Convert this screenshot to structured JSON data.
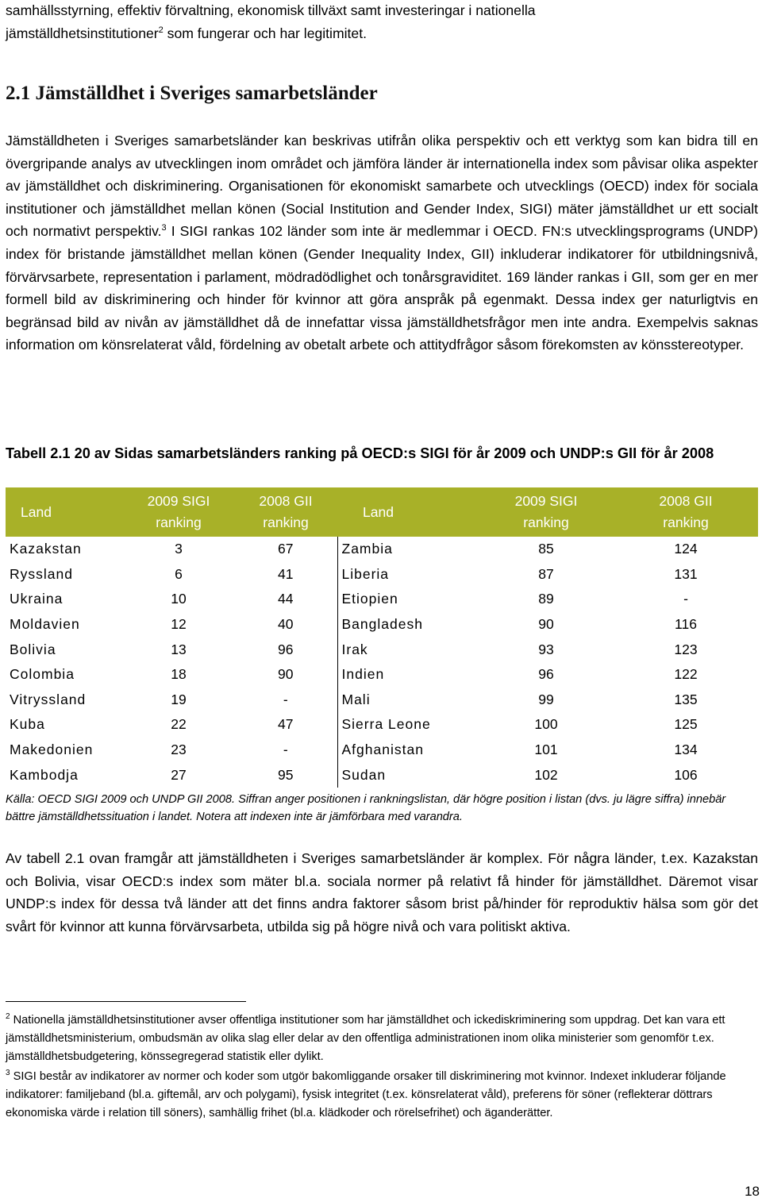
{
  "intro": {
    "p1": "samhällsstyrning, effektiv förvaltning, ekonomisk tillväxt samt investeringar i nationella",
    "p2a": "jämställdhetsinstitutioner",
    "p2sup": "2",
    "p2b": " som fungerar och har legitimitet."
  },
  "heading": "2.1 Jämställdhet i Sveriges samarbetsländer",
  "body1": {
    "a": "Jämställdheten i Sveriges samarbetsländer kan beskrivas utifrån olika perspektiv och ett verktyg som kan bidra till en övergripande analys av utvecklingen inom området och jämföra länder är internationella index som påvisar olika aspekter av jämställdhet och diskriminering. Organisationen för ekonomiskt samarbete och utvecklings (OECD) index för sociala institutioner och jämställdhet mellan könen (Social Institution and Gender Index, SIGI) mäter jämställdhet ur ett socialt och normativt perspektiv.",
    "sup": "3",
    "b": " I SIGI rankas 102 länder som inte är medlemmar i OECD. FN:s utvecklingsprograms (UNDP) index för bristande jämställdhet mellan könen (Gender Inequality Index, GII) inkluderar indikatorer för utbildningsnivå, förvärvsarbete, representation i parlament, mödradödlighet och tonårsgraviditet. 169 länder rankas i GII, som ger en mer formell bild av diskriminering och hinder för kvinnor att göra anspråk på egenmakt.  Dessa index ger naturligtvis en begränsad bild av nivån av jämställdhet då de innefattar vissa jämställdhetsfrågor men inte andra. Exempelvis saknas information om könsrelaterat våld, fördelning av obetalt arbete och attitydfrågor såsom förekomsten av könsstereotyper."
  },
  "table": {
    "caption": "Tabell 2.1  20 av Sidas samarbetsländers ranking på OECD:s SIGI för år 2009 och UNDP:s GII för år 2008",
    "header": {
      "land": "Land",
      "sigi_l1": "2009 SIGI",
      "sigi_l2": "ranking",
      "gii_l1": "2008 GII",
      "gii_l2": "ranking"
    },
    "left": [
      {
        "land": "Kazakstan",
        "sigi": "3",
        "gii": "67"
      },
      {
        "land": "Ryssland",
        "sigi": "6",
        "gii": "41"
      },
      {
        "land": "Ukraina",
        "sigi": "10",
        "gii": "44"
      },
      {
        "land": "Moldavien",
        "sigi": "12",
        "gii": "40"
      },
      {
        "land": "Bolivia",
        "sigi": "13",
        "gii": "96"
      },
      {
        "land": "Colombia",
        "sigi": "18",
        "gii": "90"
      },
      {
        "land": "Vitryssland",
        "sigi": "19",
        "gii": "-"
      },
      {
        "land": "Kuba",
        "sigi": "22",
        "gii": "47"
      },
      {
        "land": "Makedonien",
        "sigi": "23",
        "gii": "-"
      },
      {
        "land": "Kambodja",
        "sigi": "27",
        "gii": "95"
      }
    ],
    "right": [
      {
        "land": "Zambia",
        "sigi": "85",
        "gii": "124"
      },
      {
        "land": "Liberia",
        "sigi": "87",
        "gii": "131"
      },
      {
        "land": "Etiopien",
        "sigi": "89",
        "gii": "-"
      },
      {
        "land": "Bangladesh",
        "sigi": "90",
        "gii": "116"
      },
      {
        "land": "Irak",
        "sigi": "93",
        "gii": "123"
      },
      {
        "land": "Indien",
        "sigi": "96",
        "gii": "122"
      },
      {
        "land": "Mali",
        "sigi": "99",
        "gii": "135"
      },
      {
        "land": "Sierra Leone",
        "sigi": "100",
        "gii": "125"
      },
      {
        "land": "Afghanistan",
        "sigi": "101",
        "gii": "134"
      },
      {
        "land": "Sudan",
        "sigi": "102",
        "gii": "106"
      }
    ],
    "source": "Källa: OECD SIGI 2009 och UNDP GII 2008. Siffran anger positionen i rankningslistan, där högre position i listan (dvs. ju lägre siffra) innebär bättre jämställdhetssituation i landet. Notera att indexen inte är jämförbara med varandra."
  },
  "body2": "Av tabell 2.1 ovan framgår att jämställdheten i Sveriges samarbetsländer är komplex. För några länder, t.ex. Kazakstan och Bolivia, visar OECD:s index som mäter bl.a. sociala normer på relativt få hinder för jämställdhet. Däremot visar UNDP:s index för dessa två länder att det finns andra faktorer såsom brist på/hinder för reproduktiv hälsa som gör det svårt för kvinnor att kunna förvärvsarbeta, utbilda sig på högre nivå och vara politiskt aktiva.",
  "footnotes": [
    {
      "num": "2",
      "text": " Nationella jämställdhetsinstitutioner avser offentliga institutioner som har jämställdhet och ickediskriminering som uppdrag. Det kan vara ett jämställdhetsministerium, ombudsmän av olika slag eller delar av den offentliga administrationen inom olika ministerier som genomför t.ex. jämställdhetsbudgetering, könssegregerad statistik eller dylikt."
    },
    {
      "num": "3",
      "text": " SIGI består av indikatorer av normer och koder som utgör bakomliggande orsaker till diskriminering mot kvinnor. Indexet inkluderar följande indikatorer: familjeband (bl.a. giftemål, arv och polygami), fysisk integritet (t.ex. könsrelaterat våld), preferens för söner (reflekterar döttrars ekonomiska värde i relation till söners), samhällig frihet (bl.a. klädkoder och rörelsefrihet) och äganderätter."
    }
  ],
  "page_number": "18",
  "colors": {
    "table_header": "#a8b128"
  }
}
